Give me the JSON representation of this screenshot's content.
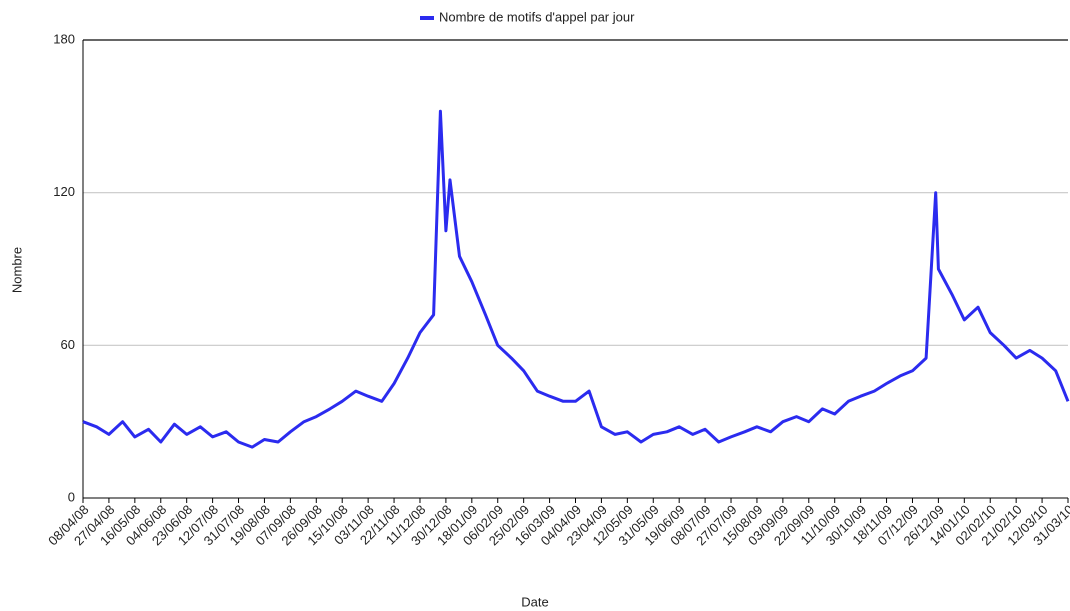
{
  "chart_data": {
    "type": "line",
    "xlabel": "Date",
    "ylabel": "Nombre",
    "x": [
      "08/04/08",
      "18/04/08",
      "27/04/08",
      "07/05/08",
      "16/05/08",
      "26/05/08",
      "04/06/08",
      "14/06/08",
      "23/06/08",
      "03/07/08",
      "12/07/08",
      "22/07/08",
      "31/07/08",
      "10/08/08",
      "19/08/08",
      "29/08/08",
      "07/09/08",
      "17/09/08",
      "26/09/08",
      "06/10/08",
      "15/10/08",
      "25/10/08",
      "03/11/08",
      "13/11/08",
      "22/11/08",
      "02/12/08",
      "11/12/08",
      "21/12/08",
      "26/12/08",
      "30/12/08",
      "02/01/09",
      "09/01/09",
      "18/01/09",
      "28/01/09",
      "06/02/09",
      "16/02/09",
      "25/02/09",
      "07/03/09",
      "16/03/09",
      "26/03/09",
      "04/04/09",
      "14/04/09",
      "23/04/09",
      "03/05/09",
      "12/05/09",
      "22/05/09",
      "31/05/09",
      "10/06/09",
      "19/06/09",
      "29/06/09",
      "08/07/09",
      "18/07/09",
      "27/07/09",
      "06/08/09",
      "15/08/09",
      "25/08/09",
      "03/09/09",
      "13/09/09",
      "22/09/09",
      "02/10/09",
      "11/10/09",
      "21/10/09",
      "30/10/09",
      "09/11/09",
      "18/11/09",
      "28/11/09",
      "07/12/09",
      "17/12/09",
      "24/12/09",
      "26/12/09",
      "05/01/10",
      "14/01/10",
      "24/01/10",
      "02/02/10",
      "12/02/10",
      "21/02/10",
      "03/03/10",
      "12/03/10",
      "22/03/10",
      "31/03/10"
    ],
    "series": [
      {
        "name": "Nombre de motifs d'appel par jour",
        "color": "#2b2bef",
        "values": [
          30,
          28,
          25,
          30,
          24,
          27,
          22,
          29,
          25,
          28,
          24,
          26,
          22,
          20,
          23,
          22,
          26,
          30,
          32,
          35,
          38,
          42,
          40,
          38,
          45,
          55,
          65,
          72,
          152,
          105,
          125,
          95,
          85,
          72,
          60,
          55,
          50,
          42,
          40,
          38,
          38,
          42,
          28,
          25,
          26,
          22,
          25,
          26,
          28,
          25,
          27,
          22,
          24,
          26,
          28,
          26,
          30,
          32,
          30,
          35,
          33,
          38,
          40,
          42,
          45,
          48,
          50,
          55,
          120,
          90,
          80,
          70,
          75,
          65,
          60,
          55,
          58,
          55,
          50,
          38
        ]
      }
    ],
    "xlim": [
      "08/04/08",
      "31/03/10"
    ],
    "xticks": [
      "08/04/08",
      "27/04/08",
      "16/05/08",
      "04/06/08",
      "23/06/08",
      "12/07/08",
      "31/07/08",
      "19/08/08",
      "07/09/08",
      "26/09/08",
      "15/10/08",
      "03/11/08",
      "22/11/08",
      "11/12/08",
      "30/12/08",
      "18/01/09",
      "06/02/09",
      "25/02/09",
      "16/03/09",
      "04/04/09",
      "23/04/09",
      "12/05/09",
      "31/05/09",
      "19/06/09",
      "08/07/09",
      "27/07/09",
      "15/08/09",
      "03/09/09",
      "22/09/09",
      "11/10/09",
      "30/10/09",
      "18/11/09",
      "07/12/09",
      "26/12/09",
      "14/01/10",
      "02/02/10",
      "21/02/10",
      "12/03/10",
      "31/03/10"
    ],
    "ylim": [
      0,
      180
    ],
    "yticks": [
      0,
      60,
      120,
      180
    ],
    "grid": true,
    "legend": "top"
  }
}
